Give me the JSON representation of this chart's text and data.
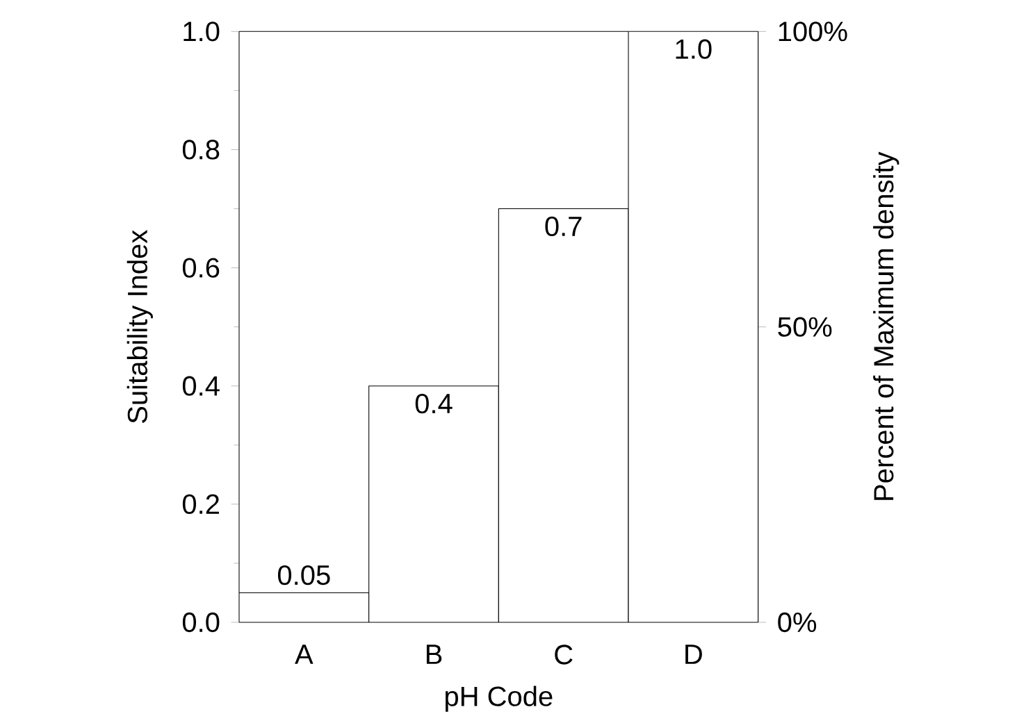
{
  "chart_data": {
    "type": "bar",
    "xlabel": "pH Code",
    "ylabel": "Suitability Index",
    "y2label": "Percent of Maximum density",
    "categories": [
      "A",
      "B",
      "C",
      "D"
    ],
    "values": [
      0.05,
      0.4,
      0.7,
      1.0
    ],
    "color": "#ffffff",
    "value_labels": [
      "0.05",
      "0.4",
      "0.7",
      "1.0"
    ],
    "ylim": [
      0,
      1
    ],
    "yticks": [
      {
        "value": 0,
        "label": "0.0"
      },
      {
        "value": 0.2,
        "label": "0.2"
      },
      {
        "value": 0.4,
        "label": "0.4"
      },
      {
        "value": 0.6,
        "label": "0.6"
      },
      {
        "value": 0.8,
        "label": "0.8"
      },
      {
        "value": 1,
        "label": "1.0"
      }
    ],
    "y2lim": [
      0,
      100
    ],
    "y2ticks": [
      {
        "value": 0,
        "label": "0%"
      },
      {
        "value": 50,
        "label": "50%"
      },
      {
        "value": 100,
        "label": "100%"
      }
    ],
    "grid": false
  }
}
